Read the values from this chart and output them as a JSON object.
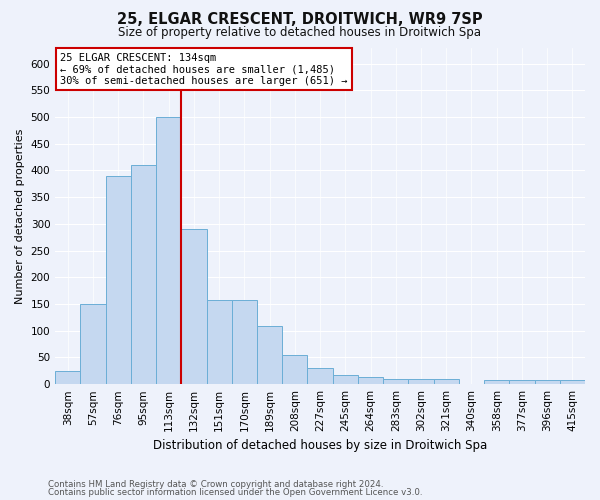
{
  "title_line1": "25, ELGAR CRESCENT, DROITWICH, WR9 7SP",
  "title_line2": "Size of property relative to detached houses in Droitwich Spa",
  "xlabel": "Distribution of detached houses by size in Droitwich Spa",
  "ylabel": "Number of detached properties",
  "bar_color": "#c5d8f0",
  "bar_edge_color": "#6baed6",
  "vline_color": "#cc0000",
  "vline_x": 4.5,
  "annotation_title": "25 ELGAR CRESCENT: 134sqm",
  "annotation_line1": "← 69% of detached houses are smaller (1,485)",
  "annotation_line2": "30% of semi-detached houses are larger (651) →",
  "annotation_box_color": "#ffffff",
  "annotation_box_edge": "#cc0000",
  "categories": [
    "38sqm",
    "57sqm",
    "76sqm",
    "95sqm",
    "113sqm",
    "132sqm",
    "151sqm",
    "170sqm",
    "189sqm",
    "208sqm",
    "227sqm",
    "245sqm",
    "264sqm",
    "283sqm",
    "302sqm",
    "321sqm",
    "340sqm",
    "358sqm",
    "377sqm",
    "396sqm",
    "415sqm"
  ],
  "values": [
    25,
    150,
    390,
    410,
    500,
    290,
    158,
    158,
    108,
    55,
    30,
    18,
    13,
    10,
    10,
    10,
    0,
    7,
    7,
    7,
    7
  ],
  "ylim": [
    0,
    630
  ],
  "yticks": [
    0,
    50,
    100,
    150,
    200,
    250,
    300,
    350,
    400,
    450,
    500,
    550,
    600
  ],
  "footer_line1": "Contains HM Land Registry data © Crown copyright and database right 2024.",
  "footer_line2": "Contains public sector information licensed under the Open Government Licence v3.0.",
  "background_color": "#eef2fb",
  "plot_background": "#eef2fb",
  "title_fontsize": 10.5,
  "subtitle_fontsize": 8.5,
  "ylabel_fontsize": 8,
  "xlabel_fontsize": 8.5,
  "tick_fontsize": 7.5,
  "annot_fontsize": 7.5,
  "footer_fontsize": 6.2
}
